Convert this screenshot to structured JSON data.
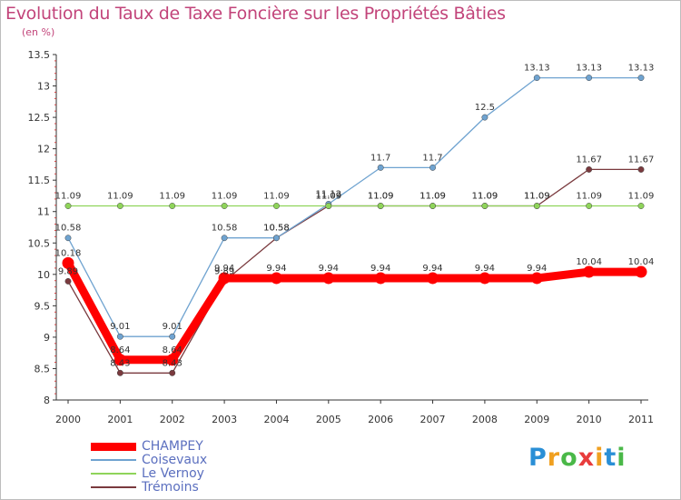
{
  "chart_data": {
    "type": "line",
    "title": "Evolution du Taux de Taxe Foncière sur les Propriétés Bâties",
    "subtitle": "(en %)",
    "xlabel": "",
    "ylabel": "",
    "x": [
      "2000",
      "2001",
      "2002",
      "2003",
      "2004",
      "2005",
      "2006",
      "2007",
      "2008",
      "2009",
      "2010",
      "2011"
    ],
    "ylim": [
      8,
      13.5
    ],
    "yticks": [
      "8",
      "8.5",
      "9",
      "9.5",
      "10",
      "10.5",
      "11",
      "11.5",
      "12",
      "12.5",
      "13",
      "13.5"
    ],
    "grid": false,
    "legend_position": "bottom-left",
    "series": [
      {
        "name": "CHAMPEY",
        "color": "#ff0000",
        "values": [
          10.18,
          8.64,
          8.64,
          9.94,
          9.94,
          9.94,
          9.94,
          9.94,
          9.94,
          9.94,
          10.04,
          10.04
        ],
        "labels": [
          "10.18",
          "8.64",
          "8.64",
          "9.94",
          "9.94",
          "9.94",
          "9.94",
          "9.94",
          "9.94",
          "9.94",
          "10.04",
          "10.04"
        ]
      },
      {
        "name": "Coisevaux",
        "color": "#6fa3d0",
        "values": [
          10.58,
          9.01,
          9.01,
          10.58,
          10.58,
          11.12,
          11.7,
          11.7,
          12.5,
          13.13,
          13.13,
          13.13
        ],
        "labels": [
          "10.58",
          "9.01",
          "9.01",
          "10.58",
          "10.58",
          "11.12",
          "11.7",
          "11.7",
          "12.5",
          "13.13",
          "13.13",
          "13.13"
        ]
      },
      {
        "name": "Le Vernoy",
        "color": "#8fd45a",
        "values": [
          11.09,
          11.09,
          11.09,
          11.09,
          11.09,
          11.09,
          11.09,
          11.09,
          11.09,
          11.09,
          11.09,
          11.09
        ],
        "labels": [
          "11.09",
          "11.09",
          "11.09",
          "11.09",
          "11.09",
          "11.09",
          "11.09",
          "11.09",
          "11.09",
          "11.09",
          "11.09",
          "11.09"
        ]
      },
      {
        "name": "Trémoins",
        "color": "#7a3a3e",
        "values": [
          9.89,
          8.43,
          8.43,
          9.89,
          10.58,
          11.09,
          11.09,
          11.09,
          11.09,
          11.09,
          11.67,
          11.67
        ],
        "labels": [
          "9.89",
          "8.43",
          "8.43",
          "9.89",
          "10.58",
          "11.09",
          "11.09",
          "11.09",
          "11.09",
          "11.09",
          "11.67",
          "11.67"
        ]
      }
    ]
  },
  "logo": {
    "letters": [
      "P",
      "r",
      "o",
      "x",
      "i",
      "t",
      "i"
    ],
    "colors": [
      "#2a8fd6",
      "#f0a020",
      "#4ab848",
      "#e83c3c",
      "#f0a020",
      "#2a8fd6",
      "#4ab848"
    ]
  }
}
